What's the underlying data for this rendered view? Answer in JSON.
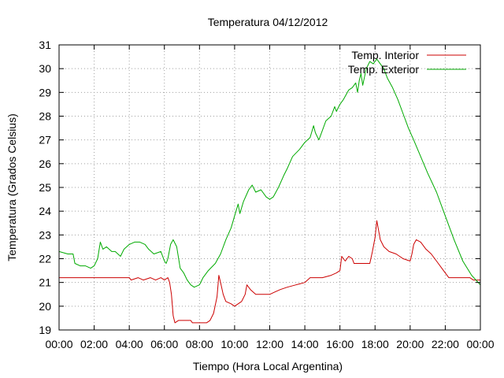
{
  "chart_data": {
    "type": "line",
    "title": "Temperatura 04/12/2012",
    "xlabel": "Tiempo (Hora Local Argentina)",
    "ylabel": "Temperatura (Grados Celsius)",
    "xlim": [
      0,
      24
    ],
    "ylim": [
      19,
      31
    ],
    "grid": true,
    "legend_position": "top-right",
    "x_ticks": [
      {
        "value": 0,
        "label": "00:00"
      },
      {
        "value": 2,
        "label": "02:00"
      },
      {
        "value": 4,
        "label": "04:00"
      },
      {
        "value": 6,
        "label": "06:00"
      },
      {
        "value": 8,
        "label": "08:00"
      },
      {
        "value": 10,
        "label": "10:00"
      },
      {
        "value": 12,
        "label": "12:00"
      },
      {
        "value": 14,
        "label": "14:00"
      },
      {
        "value": 16,
        "label": "16:00"
      },
      {
        "value": 18,
        "label": "18:00"
      },
      {
        "value": 20,
        "label": "20:00"
      },
      {
        "value": 22,
        "label": "22:00"
      },
      {
        "value": 24,
        "label": "00:00"
      }
    ],
    "y_ticks": [
      {
        "value": 19,
        "label": "19"
      },
      {
        "value": 20,
        "label": "20"
      },
      {
        "value": 21,
        "label": "21"
      },
      {
        "value": 22,
        "label": "22"
      },
      {
        "value": 23,
        "label": "23"
      },
      {
        "value": 24,
        "label": "24"
      },
      {
        "value": 25,
        "label": "25"
      },
      {
        "value": 26,
        "label": "26"
      },
      {
        "value": 27,
        "label": "27"
      },
      {
        "value": 28,
        "label": "28"
      },
      {
        "value": 29,
        "label": "29"
      },
      {
        "value": 30,
        "label": "30"
      },
      {
        "value": 31,
        "label": "31"
      }
    ],
    "series": [
      {
        "name": "Temp. Interior",
        "color": "#cc0000",
        "points": [
          [
            0.0,
            21.2
          ],
          [
            2.0,
            21.2
          ],
          [
            4.0,
            21.2
          ],
          [
            4.1,
            21.1
          ],
          [
            4.5,
            21.2
          ],
          [
            4.8,
            21.1
          ],
          [
            5.2,
            21.2
          ],
          [
            5.5,
            21.1
          ],
          [
            5.8,
            21.2
          ],
          [
            6.0,
            21.1
          ],
          [
            6.2,
            21.2
          ],
          [
            6.3,
            21.0
          ],
          [
            6.4,
            20.5
          ],
          [
            6.5,
            19.6
          ],
          [
            6.6,
            19.3
          ],
          [
            6.8,
            19.4
          ],
          [
            7.2,
            19.4
          ],
          [
            7.5,
            19.4
          ],
          [
            7.6,
            19.3
          ],
          [
            8.0,
            19.3
          ],
          [
            8.4,
            19.3
          ],
          [
            8.6,
            19.4
          ],
          [
            8.8,
            19.7
          ],
          [
            9.0,
            20.4
          ],
          [
            9.1,
            21.3
          ],
          [
            9.2,
            21.0
          ],
          [
            9.35,
            20.5
          ],
          [
            9.5,
            20.2
          ],
          [
            9.8,
            20.1
          ],
          [
            10.0,
            20.0
          ],
          [
            10.2,
            20.1
          ],
          [
            10.4,
            20.2
          ],
          [
            10.6,
            20.5
          ],
          [
            10.7,
            20.9
          ],
          [
            10.9,
            20.7
          ],
          [
            11.2,
            20.5
          ],
          [
            11.6,
            20.5
          ],
          [
            12.0,
            20.5
          ],
          [
            12.3,
            20.6
          ],
          [
            12.6,
            20.7
          ],
          [
            13.0,
            20.8
          ],
          [
            13.5,
            20.9
          ],
          [
            14.0,
            21.0
          ],
          [
            14.3,
            21.2
          ],
          [
            15.0,
            21.2
          ],
          [
            15.5,
            21.3
          ],
          [
            15.8,
            21.4
          ],
          [
            16.0,
            21.5
          ],
          [
            16.1,
            22.1
          ],
          [
            16.3,
            21.9
          ],
          [
            16.5,
            22.1
          ],
          [
            16.7,
            22.0
          ],
          [
            16.8,
            21.8
          ],
          [
            17.0,
            21.8
          ],
          [
            17.5,
            21.8
          ],
          [
            17.7,
            21.8
          ],
          [
            17.85,
            22.3
          ],
          [
            18.0,
            22.9
          ],
          [
            18.1,
            23.6
          ],
          [
            18.2,
            23.2
          ],
          [
            18.3,
            22.8
          ],
          [
            18.5,
            22.5
          ],
          [
            18.8,
            22.3
          ],
          [
            19.2,
            22.2
          ],
          [
            19.6,
            22.0
          ],
          [
            20.0,
            21.9
          ],
          [
            20.1,
            22.2
          ],
          [
            20.2,
            22.6
          ],
          [
            20.35,
            22.8
          ],
          [
            20.6,
            22.7
          ],
          [
            20.9,
            22.4
          ],
          [
            21.2,
            22.2
          ],
          [
            21.5,
            21.9
          ],
          [
            21.8,
            21.6
          ],
          [
            22.0,
            21.4
          ],
          [
            22.2,
            21.2
          ],
          [
            22.6,
            21.2
          ],
          [
            23.0,
            21.2
          ],
          [
            23.4,
            21.2
          ],
          [
            23.6,
            21.1
          ],
          [
            24.0,
            21.1
          ]
        ]
      },
      {
        "name": "Temp. Exterior",
        "color": "#00aa00",
        "points": [
          [
            0.0,
            22.3
          ],
          [
            0.5,
            22.2
          ],
          [
            0.8,
            22.2
          ],
          [
            0.9,
            21.8
          ],
          [
            1.2,
            21.7
          ],
          [
            1.5,
            21.7
          ],
          [
            1.8,
            21.6
          ],
          [
            2.0,
            21.7
          ],
          [
            2.2,
            22.0
          ],
          [
            2.35,
            22.7
          ],
          [
            2.5,
            22.4
          ],
          [
            2.7,
            22.5
          ],
          [
            3.0,
            22.3
          ],
          [
            3.2,
            22.3
          ],
          [
            3.5,
            22.1
          ],
          [
            3.7,
            22.4
          ],
          [
            4.0,
            22.6
          ],
          [
            4.3,
            22.7
          ],
          [
            4.6,
            22.7
          ],
          [
            4.9,
            22.6
          ],
          [
            5.1,
            22.4
          ],
          [
            5.4,
            22.2
          ],
          [
            5.8,
            22.3
          ],
          [
            6.0,
            21.9
          ],
          [
            6.1,
            21.8
          ],
          [
            6.2,
            22.0
          ],
          [
            6.35,
            22.6
          ],
          [
            6.5,
            22.8
          ],
          [
            6.7,
            22.5
          ],
          [
            6.9,
            21.6
          ],
          [
            7.1,
            21.4
          ],
          [
            7.3,
            21.1
          ],
          [
            7.5,
            20.9
          ],
          [
            7.7,
            20.8
          ],
          [
            8.0,
            20.9
          ],
          [
            8.2,
            21.2
          ],
          [
            8.5,
            21.5
          ],
          [
            8.9,
            21.8
          ],
          [
            9.2,
            22.2
          ],
          [
            9.5,
            22.8
          ],
          [
            9.8,
            23.3
          ],
          [
            10.0,
            23.8
          ],
          [
            10.2,
            24.3
          ],
          [
            10.3,
            23.9
          ],
          [
            10.5,
            24.4
          ],
          [
            10.8,
            24.9
          ],
          [
            11.0,
            25.1
          ],
          [
            11.2,
            24.8
          ],
          [
            11.5,
            24.9
          ],
          [
            11.8,
            24.6
          ],
          [
            12.0,
            24.5
          ],
          [
            12.2,
            24.6
          ],
          [
            12.5,
            25.0
          ],
          [
            12.8,
            25.5
          ],
          [
            13.0,
            25.8
          ],
          [
            13.3,
            26.3
          ],
          [
            13.7,
            26.6
          ],
          [
            14.0,
            26.9
          ],
          [
            14.3,
            27.1
          ],
          [
            14.5,
            27.6
          ],
          [
            14.6,
            27.3
          ],
          [
            14.8,
            27.0
          ],
          [
            15.0,
            27.4
          ],
          [
            15.2,
            27.8
          ],
          [
            15.5,
            28.0
          ],
          [
            15.7,
            28.4
          ],
          [
            15.8,
            28.2
          ],
          [
            16.0,
            28.5
          ],
          [
            16.2,
            28.7
          ],
          [
            16.5,
            29.1
          ],
          [
            16.7,
            29.2
          ],
          [
            16.9,
            29.4
          ],
          [
            17.0,
            29.0
          ],
          [
            17.1,
            29.5
          ],
          [
            17.2,
            29.8
          ],
          [
            17.3,
            29.3
          ],
          [
            17.5,
            30.0
          ],
          [
            17.7,
            30.3
          ],
          [
            17.9,
            30.2
          ],
          [
            18.1,
            30.4
          ],
          [
            18.3,
            30.2
          ],
          [
            18.5,
            30.0
          ],
          [
            18.7,
            29.6
          ],
          [
            19.0,
            29.2
          ],
          [
            19.3,
            28.7
          ],
          [
            19.6,
            28.1
          ],
          [
            19.9,
            27.5
          ],
          [
            20.2,
            27.0
          ],
          [
            20.6,
            26.3
          ],
          [
            21.0,
            25.6
          ],
          [
            21.5,
            24.8
          ],
          [
            22.0,
            23.8
          ],
          [
            22.5,
            22.8
          ],
          [
            23.0,
            21.9
          ],
          [
            23.5,
            21.3
          ],
          [
            24.0,
            20.9
          ]
        ]
      }
    ]
  }
}
